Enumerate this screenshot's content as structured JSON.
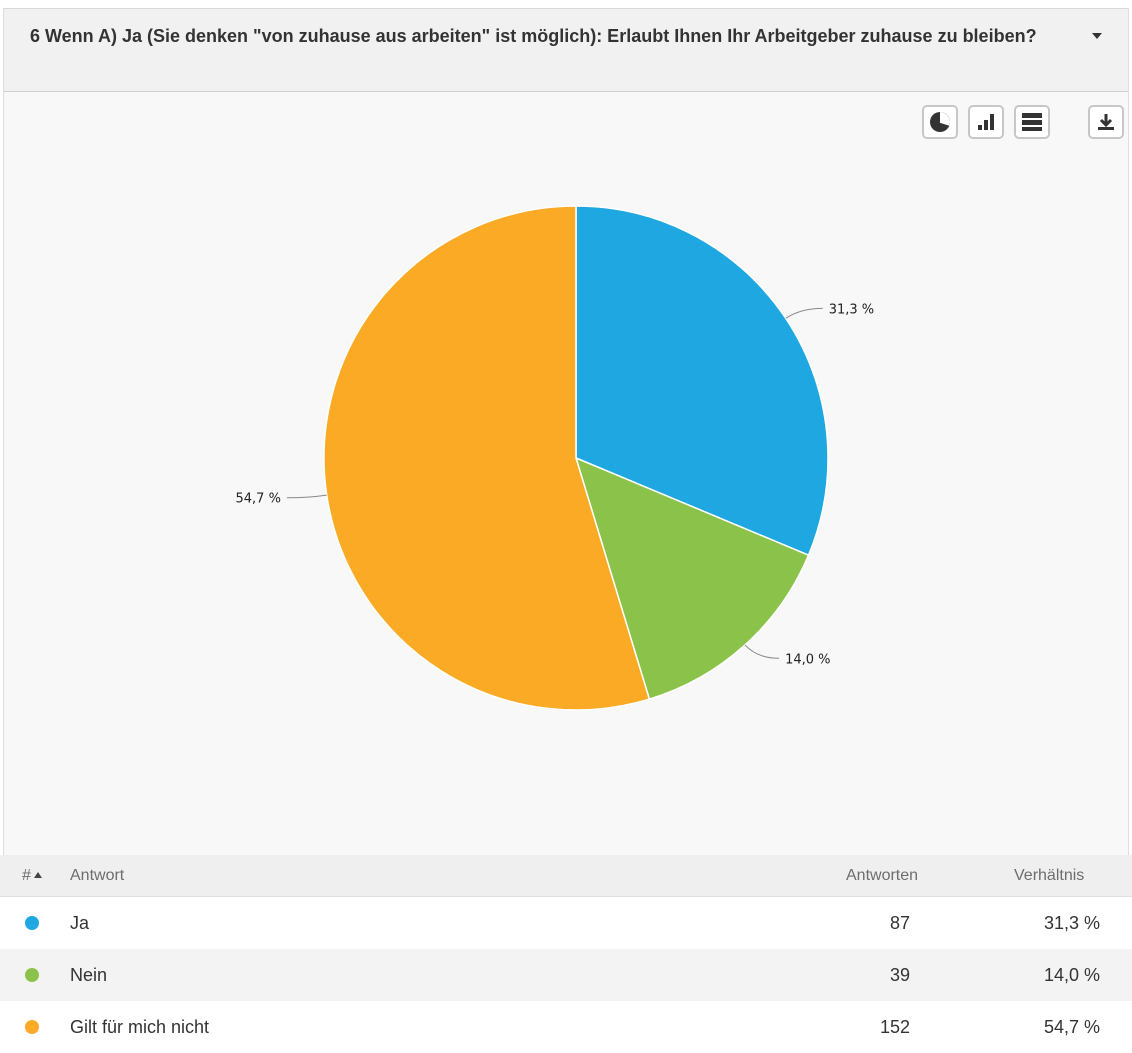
{
  "question": {
    "title": "6 Wenn A) Ja (Sie denken \"von zuhause aus arbeiten\" ist möglich): Erlaubt Ihnen Ihr Arbeitgeber zuhause zu bleiben?"
  },
  "toolbar": {
    "icons": [
      "pie-chart-icon",
      "bar-chart-icon",
      "table-view-icon",
      "download-icon"
    ]
  },
  "chart_data": {
    "type": "pie",
    "title": "",
    "categories": [
      "Ja",
      "Nein",
      "Gilt für mich nicht"
    ],
    "values": [
      31.3,
      14.0,
      54.7
    ],
    "labels": [
      "31,3 %",
      "14,0 %",
      "54,7 %"
    ],
    "colors": [
      "#1ea7e1",
      "#8bc34a",
      "#fbaa26"
    ],
    "legend": "none"
  },
  "table": {
    "headers": {
      "num": "#",
      "answer": "Antwort",
      "count": "Antworten",
      "ratio": "Verhältnis"
    },
    "rows": [
      {
        "answer": "Ja",
        "count": "87",
        "ratio": "31,3 %",
        "color": "#1ea7e1"
      },
      {
        "answer": "Nein",
        "count": "39",
        "ratio": "14,0 %",
        "color": "#8bc34a"
      },
      {
        "answer": "Gilt für mich nicht",
        "count": "152",
        "ratio": "54,7 %",
        "color": "#fbaa26"
      }
    ]
  }
}
